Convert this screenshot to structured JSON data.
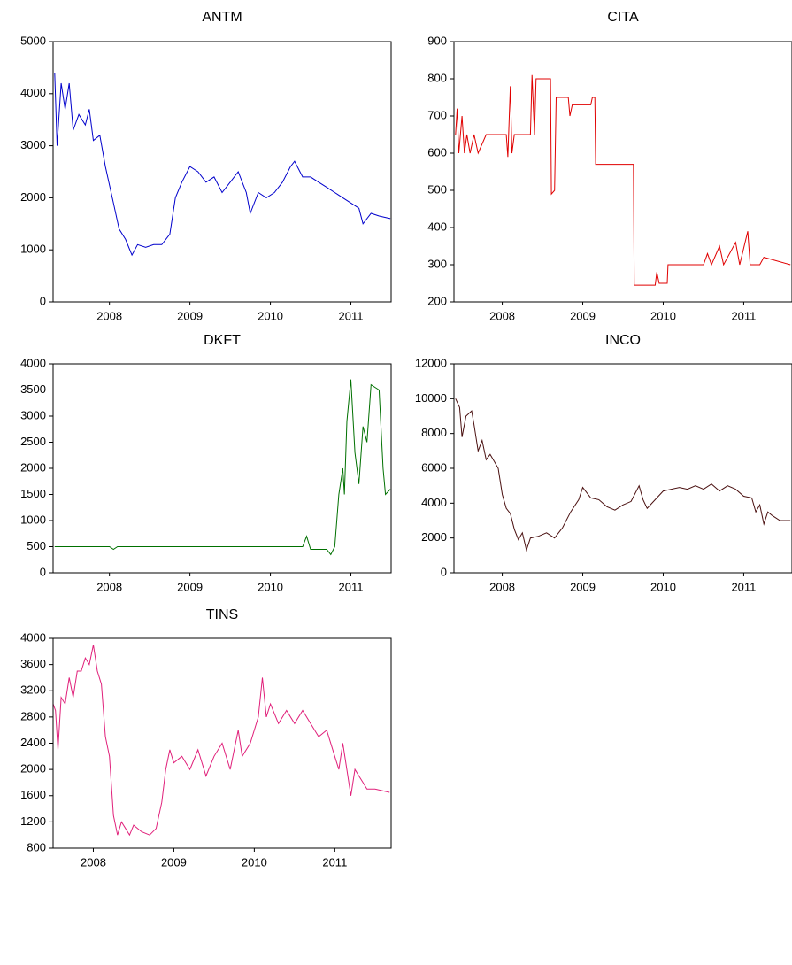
{
  "chart_data": [
    {
      "type": "line",
      "title": "ANTM",
      "x": [
        2007.82,
        2007.85,
        2007.9,
        2007.95,
        2008.0,
        2008.05,
        2008.12,
        2008.2,
        2008.25,
        2008.3,
        2008.38,
        2008.45,
        2008.55,
        2008.62,
        2008.7,
        2008.78,
        2008.85,
        2008.95,
        2009.05,
        2009.15,
        2009.25,
        2009.32,
        2009.4,
        2009.5,
        2009.6,
        2009.7,
        2009.8,
        2009.9,
        2010.0,
        2010.1,
        2010.2,
        2010.25,
        2010.35,
        2010.45,
        2010.55,
        2010.65,
        2010.75,
        2010.8,
        2010.9,
        2011.0,
        2011.1,
        2011.2,
        2011.3,
        2011.4,
        2011.5,
        2011.6,
        2011.65,
        2011.75,
        2011.85,
        2011.99
      ],
      "series": [
        {
          "color": "#0000cc",
          "values": [
            4400,
            3000,
            4200,
            3700,
            4200,
            3300,
            3600,
            3400,
            3700,
            3100,
            3200,
            2600,
            1900,
            1400,
            1200,
            900,
            1100,
            1050,
            1100,
            1100,
            1300,
            2000,
            2300,
            2600,
            2500,
            2300,
            2400,
            2100,
            2300,
            2500,
            2100,
            1700,
            2100,
            2000,
            2100,
            2300,
            2600,
            2700,
            2400,
            2400,
            2300,
            2200,
            2100,
            2000,
            1900,
            1800,
            1500,
            1700,
            1650,
            1600
          ]
        }
      ],
      "xlim": [
        2007.8,
        2012.0
      ],
      "xticks": [
        {
          "value": 2008.5,
          "label": "2008"
        },
        {
          "value": 2009.5,
          "label": "2009"
        },
        {
          "value": 2010.5,
          "label": "2010"
        },
        {
          "value": 2011.5,
          "label": "2011"
        }
      ],
      "ylim": [
        0,
        5000
      ],
      "yticks": [
        0,
        1000,
        2000,
        3000,
        4000,
        5000
      ]
    },
    {
      "type": "line",
      "title": "CITA",
      "x": [
        2007.92,
        2007.94,
        2007.96,
        2007.98,
        2008.0,
        2008.03,
        2008.06,
        2008.1,
        2008.15,
        2008.2,
        2008.3,
        2008.55,
        2008.57,
        2008.6,
        2008.62,
        2008.65,
        2008.85,
        2008.87,
        2008.9,
        2008.92,
        2009.1,
        2009.11,
        2009.15,
        2009.17,
        2009.32,
        2009.34,
        2009.37,
        2009.6,
        2009.62,
        2009.65,
        2009.66,
        2010.13,
        2010.14,
        2010.4,
        2010.42,
        2010.45,
        2010.55,
        2010.56,
        2011.0,
        2011.05,
        2011.1,
        2011.2,
        2011.25,
        2011.4,
        2011.45,
        2011.55,
        2011.58,
        2011.7,
        2011.75,
        2012.08
      ],
      "series": [
        {
          "color": "#e00000",
          "values": [
            650,
            720,
            600,
            650,
            700,
            600,
            650,
            600,
            650,
            600,
            650,
            650,
            590,
            780,
            600,
            650,
            650,
            810,
            650,
            800,
            800,
            490,
            500,
            750,
            750,
            700,
            730,
            730,
            750,
            750,
            570,
            570,
            245,
            245,
            280,
            250,
            250,
            300,
            300,
            330,
            300,
            350,
            300,
            360,
            300,
            390,
            300,
            300,
            320,
            300
          ]
        }
      ],
      "xlim": [
        2007.9,
        2012.1
      ],
      "xticks": [
        {
          "value": 2008.5,
          "label": "2008"
        },
        {
          "value": 2009.5,
          "label": "2009"
        },
        {
          "value": 2010.5,
          "label": "2010"
        },
        {
          "value": 2011.5,
          "label": "2011"
        }
      ],
      "ylim": [
        200,
        900
      ],
      "yticks": [
        200,
        300,
        400,
        500,
        600,
        700,
        800,
        900
      ]
    },
    {
      "type": "line",
      "title": "DKFT",
      "x": [
        2007.82,
        2008.5,
        2008.55,
        2008.6,
        2009.0,
        2010.9,
        2010.95,
        2011.0,
        2011.2,
        2011.25,
        2011.3,
        2011.35,
        2011.4,
        2011.42,
        2011.45,
        2011.5,
        2011.55,
        2011.6,
        2011.65,
        2011.7,
        2011.75,
        2011.85,
        2011.9,
        2011.93,
        2011.99
      ],
      "series": [
        {
          "color": "#007000",
          "values": [
            500,
            500,
            450,
            500,
            500,
            500,
            700,
            450,
            450,
            350,
            500,
            1500,
            2000,
            1500,
            2900,
            3700,
            2300,
            1700,
            2800,
            2500,
            3600,
            3500,
            2000,
            1500,
            1600
          ]
        }
      ],
      "xlim": [
        2007.8,
        2012.0
      ],
      "xticks": [
        {
          "value": 2008.5,
          "label": "2008"
        },
        {
          "value": 2009.5,
          "label": "2009"
        },
        {
          "value": 2010.5,
          "label": "2010"
        },
        {
          "value": 2011.5,
          "label": "2011"
        }
      ],
      "ylim": [
        0,
        4000
      ],
      "yticks": [
        0,
        500,
        1000,
        1500,
        2000,
        2500,
        3000,
        3500,
        4000
      ]
    },
    {
      "type": "line",
      "title": "INCO",
      "x": [
        2007.92,
        2007.97,
        2008.0,
        2008.05,
        2008.12,
        2008.15,
        2008.2,
        2008.25,
        2008.3,
        2008.35,
        2008.4,
        2008.45,
        2008.5,
        2008.55,
        2008.6,
        2008.65,
        2008.7,
        2008.75,
        2008.8,
        2008.85,
        2008.95,
        2009.05,
        2009.15,
        2009.25,
        2009.35,
        2009.45,
        2009.5,
        2009.6,
        2009.7,
        2009.8,
        2009.9,
        2010.0,
        2010.1,
        2010.2,
        2010.25,
        2010.3,
        2010.4,
        2010.5,
        2010.6,
        2010.7,
        2010.8,
        2010.9,
        2011.0,
        2011.1,
        2011.2,
        2011.3,
        2011.4,
        2011.5,
        2011.6,
        2011.65,
        2011.7,
        2011.75,
        2011.8,
        2011.85,
        2011.95,
        2012.08
      ],
      "series": [
        {
          "color": "#4a1010",
          "values": [
            10000,
            9500,
            7800,
            9000,
            9300,
            8500,
            7000,
            7600,
            6500,
            6800,
            6400,
            6000,
            4500,
            3700,
            3400,
            2500,
            1900,
            2300,
            1300,
            2000,
            2100,
            2300,
            2000,
            2600,
            3500,
            4200,
            4900,
            4300,
            4200,
            3800,
            3600,
            3900,
            4100,
            5000,
            4200,
            3700,
            4200,
            4700,
            4800,
            4900,
            4800,
            5000,
            4800,
            5100,
            4700,
            5000,
            4800,
            4400,
            4300,
            3500,
            3900,
            2800,
            3500,
            3300,
            3000,
            3000
          ]
        }
      ],
      "xlim": [
        2007.9,
        2012.1
      ],
      "xticks": [
        {
          "value": 2008.5,
          "label": "2008"
        },
        {
          "value": 2009.5,
          "label": "2009"
        },
        {
          "value": 2010.5,
          "label": "2010"
        },
        {
          "value": 2011.5,
          "label": "2011"
        }
      ],
      "ylim": [
        0,
        12000
      ],
      "yticks": [
        0,
        2000,
        4000,
        6000,
        8000,
        10000,
        12000
      ]
    },
    {
      "type": "line",
      "title": "TINS",
      "x": [
        2008.0,
        2008.03,
        2008.06,
        2008.1,
        2008.15,
        2008.2,
        2008.25,
        2008.3,
        2008.35,
        2008.4,
        2008.45,
        2008.5,
        2008.55,
        2008.6,
        2008.65,
        2008.7,
        2008.75,
        2008.8,
        2008.85,
        2008.9,
        2008.95,
        2009.0,
        2009.1,
        2009.2,
        2009.28,
        2009.35,
        2009.4,
        2009.45,
        2009.5,
        2009.6,
        2009.7,
        2009.8,
        2009.9,
        2010.0,
        2010.1,
        2010.2,
        2010.3,
        2010.35,
        2010.45,
        2010.55,
        2010.6,
        2010.65,
        2010.7,
        2010.8,
        2010.9,
        2011.0,
        2011.1,
        2011.2,
        2011.3,
        2011.4,
        2011.5,
        2011.55,
        2011.6,
        2011.7,
        2011.75,
        2011.8,
        2011.85,
        2011.9,
        2012.0,
        2012.18
      ],
      "series": [
        {
          "color": "#e0207a",
          "values": [
            3000,
            2900,
            2300,
            3100,
            3000,
            3400,
            3100,
            3500,
            3500,
            3700,
            3600,
            3900,
            3500,
            3300,
            2500,
            2200,
            1300,
            1000,
            1200,
            1100,
            1000,
            1150,
            1050,
            1000,
            1100,
            1500,
            2000,
            2300,
            2100,
            2200,
            2000,
            2300,
            1900,
            2200,
            2400,
            2000,
            2600,
            2200,
            2400,
            2800,
            3400,
            2800,
            3000,
            2700,
            2900,
            2700,
            2900,
            2700,
            2500,
            2600,
            2200,
            2000,
            2400,
            1600,
            2000,
            1900,
            1800,
            1700,
            1700,
            1650
          ]
        }
      ],
      "xlim": [
        2008.0,
        2012.2
      ],
      "xticks": [
        {
          "value": 2008.5,
          "label": "2008"
        },
        {
          "value": 2009.5,
          "label": "2009"
        },
        {
          "value": 2010.5,
          "label": "2010"
        },
        {
          "value": 2011.5,
          "label": "2011"
        }
      ],
      "ylim": [
        800,
        4000
      ],
      "yticks": [
        800,
        1200,
        1600,
        2000,
        2400,
        2800,
        3200,
        3600,
        4000
      ]
    }
  ]
}
